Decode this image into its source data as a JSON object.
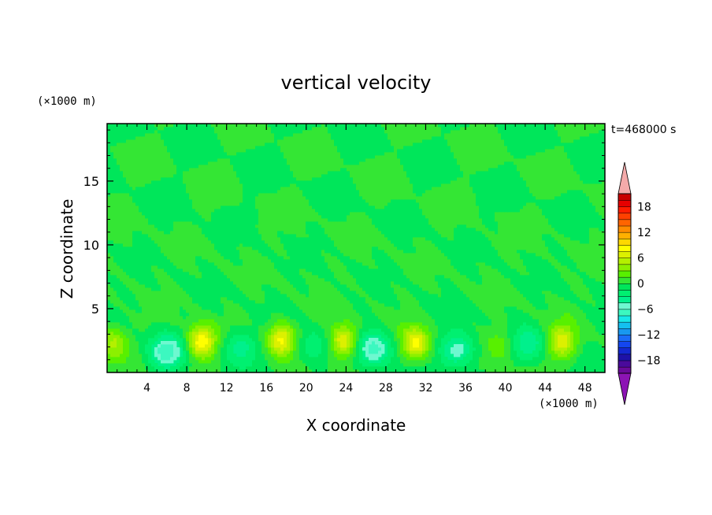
{
  "chart_data": {
    "type": "heatmap",
    "title": "vertical velocity",
    "xlabel": "X coordinate",
    "ylabel": "Z coordinate",
    "x_unit": "(×1000 m)",
    "y_unit": "(×1000 m)",
    "time_label": "t=468000 s",
    "xlim": [
      0,
      50
    ],
    "ylim": [
      0,
      19.5
    ],
    "x_ticks": [
      4,
      8,
      12,
      16,
      20,
      24,
      28,
      32,
      36,
      40,
      44,
      48
    ],
    "x_tick_labels": [
      "4",
      "8",
      "12",
      "16",
      "20",
      "24",
      "28",
      "32",
      "36",
      "40",
      "44",
      "48"
    ],
    "y_ticks": [
      5,
      10,
      15
    ],
    "y_tick_labels": [
      "5",
      "10",
      "15"
    ],
    "colorbar": {
      "levels": [
        -21,
        -19.5,
        -18,
        -16.5,
        -15,
        -13.5,
        -12,
        -10.5,
        -9,
        -7.5,
        -6,
        -4.5,
        -3,
        -1.5,
        0,
        1.5,
        3,
        4.5,
        6,
        7.5,
        9,
        10.5,
        12,
        13.5,
        15,
        16.5,
        18,
        19.5,
        21
      ],
      "tick_values": [
        -18,
        -12,
        -6,
        0,
        6,
        12,
        18
      ],
      "tick_labels": [
        "−18",
        "−12",
        "−6",
        "0",
        "6",
        "12",
        "18"
      ],
      "colors": [
        "#6a0a9a",
        "#4a0a9c",
        "#1e12a8",
        "#1428d0",
        "#1446f0",
        "#1a6cf8",
        "#1898f0",
        "#14c0f0",
        "#18e8e8",
        "#3cf8c0",
        "#6ef8d0",
        "#00f08c",
        "#00f070",
        "#00e65a",
        "#34e634",
        "#58f000",
        "#8cf000",
        "#b4f000",
        "#dcf000",
        "#ffff00",
        "#ffd800",
        "#ffb000",
        "#ff8c00",
        "#ff6400",
        "#ff4000",
        "#ff1c00",
        "#e60000",
        "#c80000"
      ],
      "under_color": "#8c14b4",
      "over_color": "#f4aaaa"
    },
    "features": [
      {
        "kind": "updraft",
        "x": 0.6,
        "z": 2.3,
        "peak": 5
      },
      {
        "kind": "updraft",
        "x": 9.5,
        "z": 2.4,
        "peak": 9
      },
      {
        "kind": "updraft",
        "x": 17.5,
        "z": 2.6,
        "peak": 8
      },
      {
        "kind": "updraft",
        "x": 23.8,
        "z": 2.5,
        "peak": 8
      },
      {
        "kind": "updraft",
        "x": 31.0,
        "z": 2.3,
        "peak": 8
      },
      {
        "kind": "updraft",
        "x": 39.5,
        "z": 2.2,
        "peak": 3
      },
      {
        "kind": "updraft",
        "x": 45.7,
        "z": 2.4,
        "peak": 7
      },
      {
        "kind": "downdraft",
        "x": 5.9,
        "z": 1.6,
        "peak": -7
      },
      {
        "kind": "downdraft",
        "x": 13.3,
        "z": 2.0,
        "peak": -4
      },
      {
        "kind": "downdraft",
        "x": 20.5,
        "z": 2.0,
        "peak": -3
      },
      {
        "kind": "downdraft",
        "x": 26.8,
        "z": 1.9,
        "peak": -7
      },
      {
        "kind": "downdraft",
        "x": 35.2,
        "z": 1.8,
        "peak": -6
      },
      {
        "kind": "downdraft",
        "x": 42.3,
        "z": 2.2,
        "peak": -4
      }
    ]
  }
}
